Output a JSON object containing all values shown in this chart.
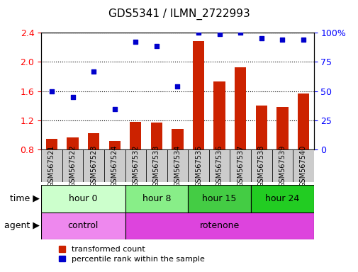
{
  "title": "GDS5341 / ILMN_2722993",
  "samples": [
    "GSM567521",
    "GSM567522",
    "GSM567523",
    "GSM567524",
    "GSM567532",
    "GSM567533",
    "GSM567534",
    "GSM567535",
    "GSM567536",
    "GSM567537",
    "GSM567538",
    "GSM567539",
    "GSM567540"
  ],
  "bar_values": [
    0.95,
    0.97,
    1.02,
    0.92,
    1.18,
    1.17,
    1.08,
    2.28,
    1.73,
    1.93,
    1.4,
    1.38,
    1.57
  ],
  "scatter_values_pct": [
    50.0,
    45.0,
    67.0,
    34.5,
    92.0,
    88.5,
    54.0,
    100.0,
    99.0,
    100.0,
    95.0,
    94.0,
    94.0
  ],
  "ylim_left": [
    0.8,
    2.4
  ],
  "ylim_right": [
    0,
    100
  ],
  "yticks_left": [
    0.8,
    1.2,
    1.6,
    2.0,
    2.4
  ],
  "yticks_right": [
    0,
    25,
    50,
    75,
    100
  ],
  "bar_color": "#cc2200",
  "scatter_color": "#0000cc",
  "time_groups": [
    {
      "label": "hour 0",
      "start": 0,
      "end": 4,
      "color": "#ccffcc"
    },
    {
      "label": "hour 8",
      "start": 4,
      "end": 7,
      "color": "#88ee88"
    },
    {
      "label": "hour 15",
      "start": 7,
      "end": 10,
      "color": "#44cc44"
    },
    {
      "label": "hour 24",
      "start": 10,
      "end": 13,
      "color": "#22cc22"
    }
  ],
  "agent_groups": [
    {
      "label": "control",
      "start": 0,
      "end": 4,
      "color": "#ee88ee"
    },
    {
      "label": "rotenone",
      "start": 4,
      "end": 13,
      "color": "#dd44dd"
    }
  ],
  "legend_bar_label": "transformed count",
  "legend_scatter_label": "percentile rank within the sample",
  "time_label": "time",
  "agent_label": "agent",
  "grid_color": "#000000",
  "bg_color": "#ffffff",
  "bar_width": 0.55,
  "tick_box_color": "#cccccc"
}
